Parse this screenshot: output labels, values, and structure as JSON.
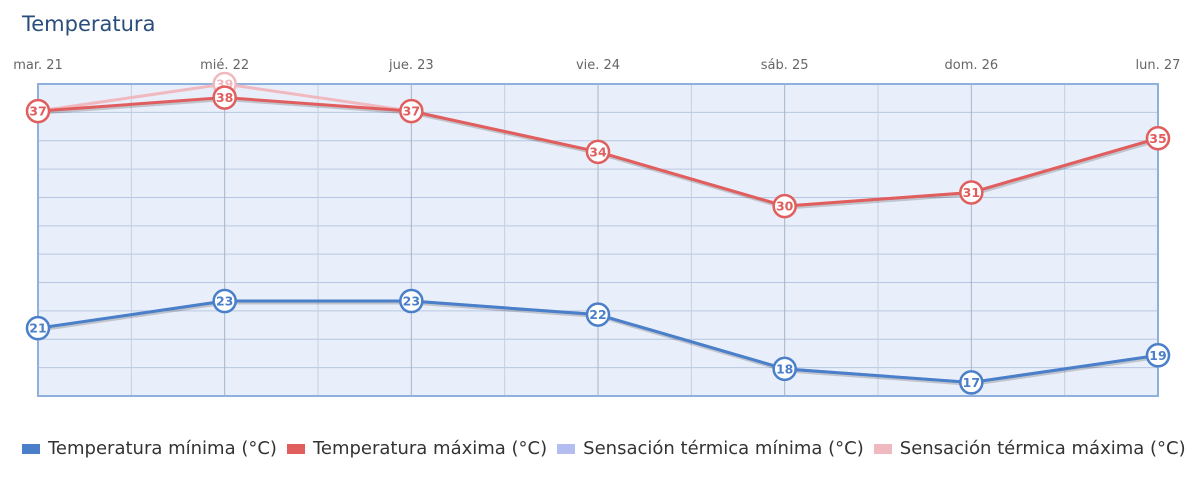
{
  "chart_data": {
    "type": "line",
    "title": "Temperatura",
    "categories": [
      "mar. 21",
      "mié. 22",
      "jue. 23",
      "vie. 24",
      "sáb. 25",
      "dom. 26",
      "lun. 27"
    ],
    "ylim": [
      16,
      39
    ],
    "grid": true,
    "legend_position": "bottom-left",
    "series": [
      {
        "name": "Temperatura mínima (°C)",
        "color": "#4a7fc9",
        "values": [
          21,
          23,
          23,
          22,
          18,
          17,
          19
        ]
      },
      {
        "name": "Temperatura máxima (°C)",
        "color": "#e05e5e",
        "values": [
          37,
          38,
          37,
          34,
          30,
          31,
          35
        ]
      },
      {
        "name": "Sensación térmica mínima (°C)",
        "color": "#b3bdf0",
        "values": [
          21,
          23,
          23,
          22,
          18,
          17,
          19
        ]
      },
      {
        "name": "Sensación térmica máxima (°C)",
        "color": "#f0b8bf",
        "values": [
          37,
          39,
          37,
          34,
          30,
          31,
          35
        ]
      }
    ]
  }
}
